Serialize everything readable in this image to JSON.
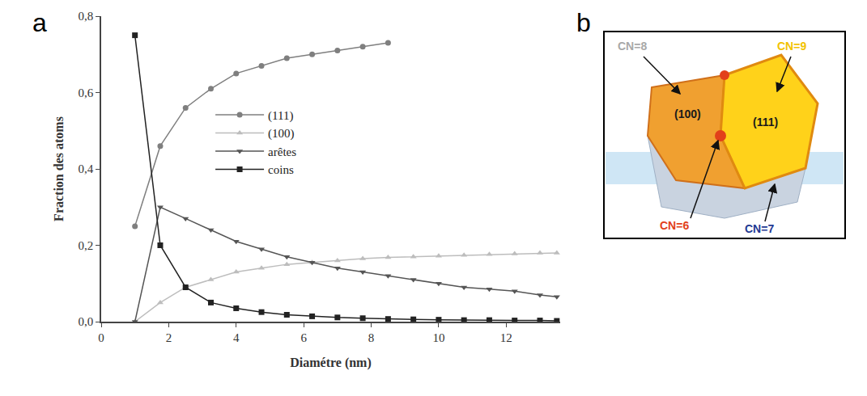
{
  "chart_data": {
    "type": "line",
    "panel_label": "a",
    "x_label": "Diamétre (nm)",
    "y_label": "Fraction des atoms",
    "xlim": [
      0,
      13.6
    ],
    "xticks": [
      0,
      2,
      4,
      6,
      8,
      10,
      12
    ],
    "ylim": [
      0,
      0.8
    ],
    "yticks": [
      {
        "value": 0,
        "label": "0,0"
      },
      {
        "value": 0.2,
        "label": "0,2"
      },
      {
        "value": 0.4,
        "label": "0,4"
      },
      {
        "value": 0.6,
        "label": "0,6"
      },
      {
        "value": 0.8,
        "label": "0,8"
      }
    ],
    "legend": "center",
    "x": [
      1,
      1.75,
      2.5,
      3.25,
      4,
      4.75,
      5.5,
      6.25,
      7,
      7.75,
      8.5,
      9.25,
      10,
      10.75,
      11.5,
      12.25,
      13,
      13.5
    ],
    "series": [
      {
        "name": "(111)",
        "color": "#7f7f7f",
        "marker": "circle",
        "line_style": "solid",
        "values": [
          0.25,
          0.46,
          0.56,
          0.61,
          0.65,
          0.67,
          0.69,
          0.7,
          0.71,
          0.72,
          0.73,
          null,
          null,
          null,
          null,
          null,
          null,
          null
        ]
      },
      {
        "name": "(100)",
        "color": "#bdbdbd",
        "marker": "triangle-up",
        "line_style": "solid",
        "values": [
          0.0,
          0.05,
          0.09,
          0.11,
          0.13,
          0.14,
          0.15,
          0.155,
          0.16,
          0.165,
          0.168,
          0.17,
          0.172,
          0.174,
          0.176,
          0.178,
          0.18,
          0.18
        ]
      },
      {
        "name": "arêtes",
        "color": "#555555",
        "marker": "triangle-down",
        "line_style": "solid",
        "values": [
          0.0,
          0.3,
          0.27,
          0.24,
          0.21,
          0.19,
          0.17,
          0.155,
          0.14,
          0.13,
          0.12,
          0.11,
          0.1,
          0.09,
          0.085,
          0.08,
          0.07,
          0.065
        ]
      },
      {
        "name": "coins",
        "color": "#222222",
        "marker": "square",
        "line_style": "solid",
        "values": [
          0.75,
          0.2,
          0.09,
          0.05,
          0.035,
          0.025,
          0.018,
          0.014,
          0.011,
          0.009,
          0.007,
          0.006,
          0.005,
          0.004,
          0.004,
          0.003,
          0.003,
          0.002
        ]
      }
    ]
  },
  "diagram": {
    "panel_label": "b",
    "labels": [
      {
        "text": "CN=8",
        "color": "#a8a8a8"
      },
      {
        "text": "CN=9",
        "color": "#f2c200"
      },
      {
        "text": "(100)",
        "color": "#1a1a1a"
      },
      {
        "text": "(111)",
        "color": "#1a1a1a"
      },
      {
        "text": "CN=6",
        "color": "#e2401a"
      },
      {
        "text": "CN=7",
        "color": "#1f3a93"
      }
    ]
  }
}
